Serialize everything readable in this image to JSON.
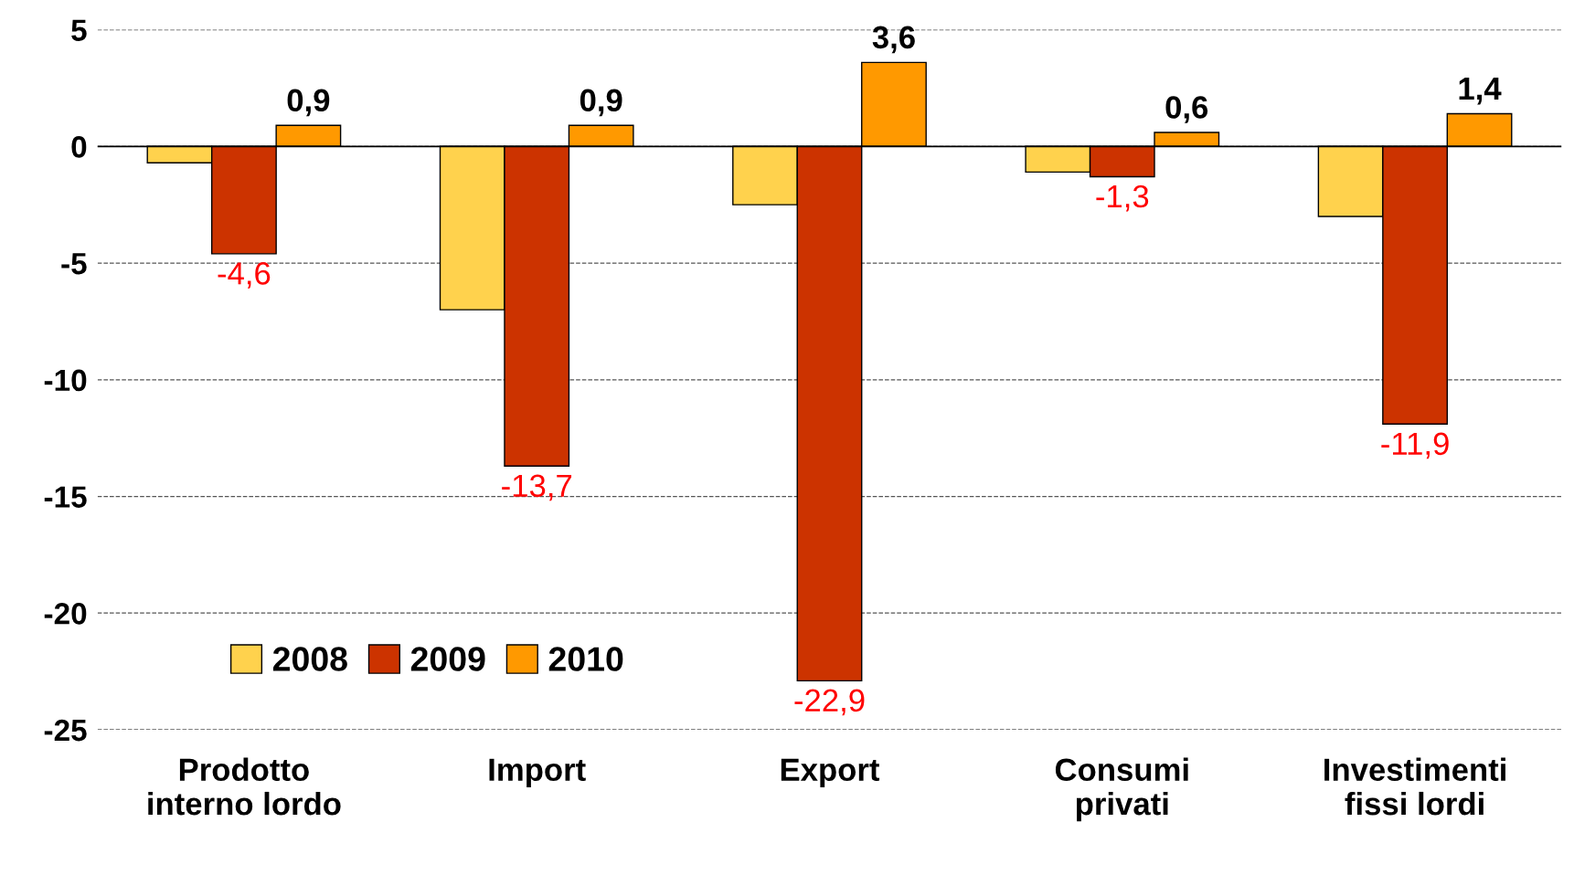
{
  "chart_data": {
    "type": "bar",
    "categories": [
      "Prodotto\ninterno lordo",
      "Import",
      "Export",
      "Consumi\nprivati",
      "Investimenti\nfissi lordi"
    ],
    "series": [
      {
        "name": "2008",
        "color": "#ffd24d",
        "values": [
          -0.7,
          -7.0,
          -2.5,
          -1.1,
          -3.0
        ],
        "value_labels": [
          null,
          null,
          null,
          null,
          null
        ]
      },
      {
        "name": "2009",
        "color": "#cc3300",
        "values": [
          -4.6,
          -13.7,
          -22.9,
          -1.3,
          -11.9
        ],
        "value_labels": [
          "-4,6",
          "-13,7",
          "-22,9",
          "-1,3",
          "-11,9"
        ]
      },
      {
        "name": "2010",
        "color": "#ff9900",
        "values": [
          0.9,
          0.9,
          3.6,
          0.6,
          1.4
        ],
        "value_labels": [
          "0,9",
          "0,9",
          "3,6",
          "0,6",
          "1,4"
        ]
      }
    ],
    "ylim": [
      -25,
      5
    ],
    "yticks": [
      -25,
      -20,
      -15,
      -10,
      -5,
      0,
      5
    ],
    "grid": "y",
    "legend": "bottom left",
    "ref_lines": [
      {
        "axis": "y",
        "value": 0
      }
    ]
  }
}
